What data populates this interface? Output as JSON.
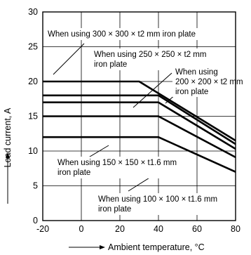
{
  "chart_data": {
    "type": "line",
    "title": "",
    "xlabel": "Ambient temperature, °C",
    "ylabel": "Load current, A",
    "xlim": [
      -20,
      80
    ],
    "ylim": [
      0,
      30
    ],
    "x_ticks": [
      "-20",
      "0",
      "20",
      "40",
      "60",
      "80"
    ],
    "y_ticks": [
      "0",
      "5",
      "10",
      "15",
      "20",
      "25",
      "30"
    ],
    "grid": true,
    "series": [
      {
        "name": "When using 300 × 300 × t2 mm iron plate",
        "points": [
          [
            -20,
            20
          ],
          [
            30,
            20
          ],
          [
            80,
            11.5
          ]
        ]
      },
      {
        "name": "When using 250 × 250 × t2 mm iron plate",
        "points": [
          [
            -20,
            18
          ],
          [
            40,
            18
          ],
          [
            80,
            11
          ]
        ]
      },
      {
        "name": "When using 200 × 200 × t2 mm iron plate",
        "points": [
          [
            -20,
            17
          ],
          [
            40,
            17
          ],
          [
            80,
            10.3
          ]
        ]
      },
      {
        "name": "When using 150 × 150 × t1.6 mm iron plate",
        "points": [
          [
            -20,
            15
          ],
          [
            40,
            15
          ],
          [
            80,
            9.1
          ]
        ]
      },
      {
        "name": "When using 100 × 100 × t1.6 mm iron plate",
        "points": [
          [
            -20,
            12
          ],
          [
            40,
            12
          ],
          [
            80,
            7
          ]
        ]
      }
    ],
    "annotations": [
      {
        "lines": [
          "When using 300 × 300 × t2 mm iron plate"
        ],
        "series": 0
      },
      {
        "lines": [
          "When using 250 × 250 × t2 mm",
          "iron plate"
        ],
        "series": 1
      },
      {
        "lines": [
          "When using",
          "200 × 200 × t2 mm",
          "iron plate"
        ],
        "series": 2
      },
      {
        "lines": [
          "When using 150 × 150 × t1.6 mm",
          "iron plate"
        ],
        "series": 3
      },
      {
        "lines": [
          "When using 100 × 100 × t1.6 mm",
          "iron plate"
        ],
        "series": 4
      }
    ]
  }
}
